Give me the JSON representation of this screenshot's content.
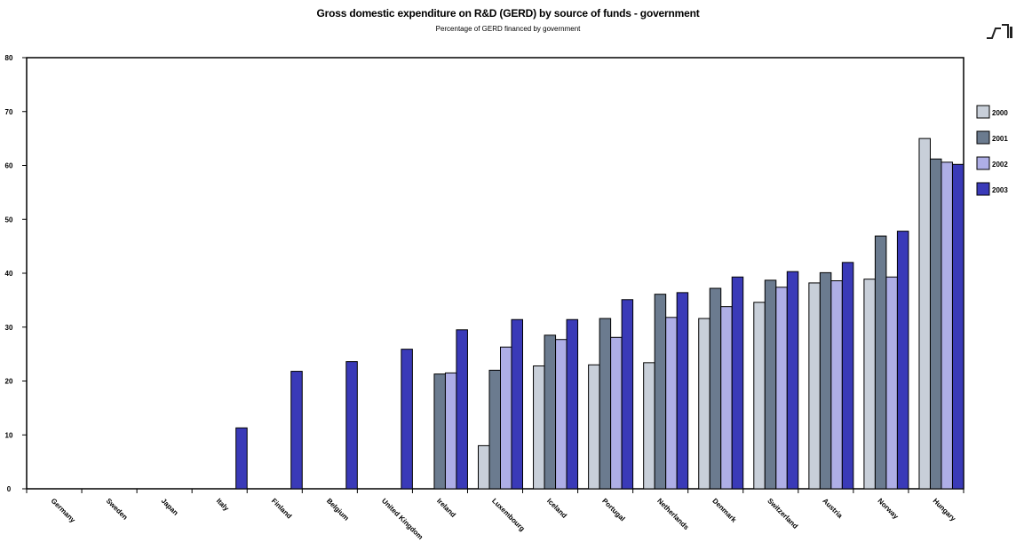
{
  "chart_data": {
    "type": "bar",
    "title": "Gross domestic expenditure on R&D (GERD) by source of funds - government",
    "subtitle": "Percentage of GERD financed by government",
    "categories": [
      "Germany",
      "Sweden",
      "Japan",
      "Italy",
      "Finland",
      "Belgium",
      "United Kingdom",
      "Ireland",
      "Luxembourg",
      "Iceland",
      "Portugal",
      "Netherlands",
      "Denmark",
      "Switzerland",
      "Austria",
      "Norway",
      "Hungary"
    ],
    "series": [
      {
        "name": "2000",
        "color": "#c8cfd9",
        "values": [
          null,
          null,
          null,
          null,
          null,
          null,
          null,
          null,
          8,
          22.8,
          23.0,
          23.4,
          31.6,
          34.6,
          38.2,
          38.9,
          65.0
        ]
      },
      {
        "name": "2001",
        "color": "#6b7b8f",
        "values": [
          null,
          null,
          null,
          null,
          null,
          null,
          null,
          21.3,
          22.0,
          28.5,
          31.6,
          36.1,
          37.2,
          38.7,
          40.1,
          46.9,
          61.2
        ]
      },
      {
        "name": "2002",
        "color": "#aeaee6",
        "values": [
          null,
          null,
          null,
          null,
          null,
          null,
          null,
          21.5,
          26.3,
          27.7,
          28.1,
          31.8,
          33.8,
          37.4,
          38.6,
          39.3,
          60.6
        ]
      },
      {
        "name": "2003",
        "color": "#3a3ab8",
        "values": [
          null,
          null,
          null,
          11.3,
          21.8,
          23.6,
          25.9,
          29.5,
          31.4,
          31.4,
          35.1,
          36.4,
          39.3,
          40.3,
          42.0,
          47.8,
          60.2
        ]
      }
    ],
    "yticks": [
      0,
      10,
      20,
      30,
      40,
      50,
      60,
      70,
      80
    ],
    "ytick_labels": [
      "0",
      "10",
      "20",
      "30",
      "40",
      "50",
      "60",
      "70",
      "80"
    ],
    "ylim": [
      0,
      80
    ],
    "legend_position": "right",
    "grid": false
  }
}
